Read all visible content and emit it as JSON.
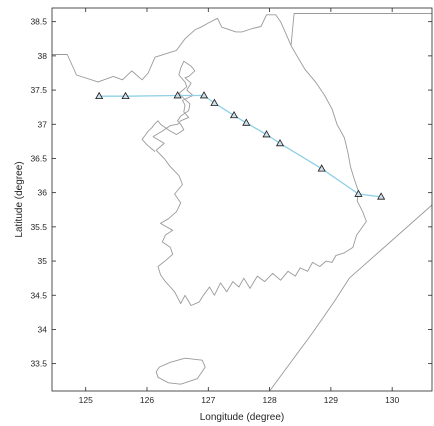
{
  "chart_data": {
    "type": "line",
    "title": "",
    "xlabel": "Longitude (degree)",
    "ylabel": "Latitude (degree)",
    "xlim": [
      124.45,
      130.65
    ],
    "ylim": [
      33.1,
      38.7
    ],
    "xticks": [
      125,
      126,
      127,
      128,
      129,
      130
    ],
    "yticks": [
      33.5,
      34,
      34.5,
      35,
      35.5,
      36,
      36.5,
      37,
      37.5,
      38,
      38.5
    ],
    "grid": false,
    "legend": "none",
    "series": [
      {
        "x": [
          125.22,
          125.65,
          126.5,
          126.93,
          127.1,
          127.42,
          127.62,
          127.95,
          128.17,
          128.85,
          129.45,
          129.82
        ],
        "y": [
          37.41,
          37.41,
          37.42,
          37.42,
          37.31,
          37.13,
          37.02,
          36.85,
          36.72,
          36.35,
          35.98,
          35.94
        ],
        "line_color": "#8fd0e6",
        "marker": "triangle",
        "marker_edge": "#1a1a1a",
        "marker_face": "#cfe0ea"
      }
    ],
    "map_color": "#9a9a9a",
    "coastline_lon": [
      126.13,
      126.48,
      126.62,
      126.78,
      126.88,
      127.0,
      127.15,
      127.22,
      127.45,
      127.55,
      127.72,
      127.86,
      127.95,
      128.1,
      128.18,
      128.28,
      128.35,
      128.48,
      128.58,
      128.75,
      128.9,
      129.02,
      129.1,
      129.22,
      129.28,
      129.32,
      129.38,
      129.45,
      129.43,
      129.52,
      129.58,
      129.42,
      129.36,
      129.22,
      129.08,
      129.02,
      128.92,
      128.82,
      128.7,
      128.62,
      128.5,
      128.42,
      128.3,
      128.18,
      128.05,
      127.92,
      127.8,
      127.68,
      127.58,
      127.5,
      127.4,
      127.3,
      127.2,
      127.1,
      127.02,
      126.92,
      126.85,
      126.72,
      126.62,
      126.55,
      126.45,
      126.38,
      126.3,
      126.22,
      126.18,
      126.32,
      126.42,
      126.38,
      126.25,
      126.3,
      126.42,
      126.22,
      126.35,
      126.48,
      126.55,
      126.45,
      126.58,
      126.52,
      126.38,
      126.28,
      126.15,
      126.28,
      126.1,
      126.25,
      126.38,
      126.5,
      126.55,
      126.68,
      126.6,
      126.62,
      126.58,
      126.75,
      126.65,
      126.72,
      126.62,
      126.68,
      126.78,
      126.72,
      126.6,
      126.55,
      126.52,
      126.62,
      126.65,
      126.52,
      126.6,
      126.7,
      126.68,
      126.55,
      126.5,
      126.55,
      126.6,
      126.48,
      126.38,
      126.3,
      126.22,
      126.18,
      126.12,
      126.08,
      126.02,
      125.98,
      125.92,
      126.0,
      126.13
    ],
    "coastline_lat": [
      37.98,
      38.08,
      38.25,
      38.38,
      38.42,
      38.48,
      38.55,
      38.42,
      38.35,
      38.35,
      38.4,
      38.43,
      38.6,
      38.6,
      38.5,
      38.3,
      38.15,
      37.95,
      37.8,
      37.62,
      37.42,
      37.22,
      37.0,
      36.8,
      36.58,
      36.38,
      36.2,
      36.02,
      35.88,
      35.72,
      35.58,
      35.38,
      35.2,
      35.12,
      35.08,
      34.98,
      35.0,
      34.92,
      34.98,
      34.85,
      34.9,
      34.78,
      34.85,
      34.72,
      34.82,
      34.7,
      34.78,
      34.6,
      34.75,
      34.62,
      34.7,
      34.55,
      34.68,
      34.5,
      34.62,
      34.5,
      34.4,
      34.35,
      34.5,
      34.38,
      34.55,
      34.62,
      34.7,
      34.8,
      34.92,
      35.02,
      35.1,
      35.2,
      35.28,
      35.38,
      35.45,
      35.55,
      35.62,
      35.72,
      35.85,
      35.98,
      36.12,
      36.25,
      36.38,
      36.5,
      36.62,
      36.72,
      36.82,
      36.9,
      36.98,
      37.0,
      37.05,
      37.1,
      37.18,
      37.28,
      37.35,
      37.42,
      37.5,
      37.6,
      37.68,
      37.7,
      37.78,
      37.85,
      37.92,
      37.82,
      37.72,
      37.62,
      37.55,
      37.45,
      37.38,
      37.3,
      37.2,
      37.12,
      37.05,
      37.0,
      36.92,
      36.85,
      36.9,
      36.95,
      37.0,
      37.05,
      37.0,
      36.95,
      36.9,
      36.85,
      36.78,
      36.7,
      36.6,
      37.55,
      37.98
    ],
    "border_lon": [
      124.45,
      124.7,
      124.85,
      125.2,
      125.45,
      125.6,
      125.75,
      125.92,
      126.02,
      126.13
    ],
    "border_lat": [
      38.02,
      38.02,
      37.72,
      37.62,
      37.7,
      37.65,
      37.78,
      37.65,
      37.75,
      37.98
    ],
    "land_edge_lon": [
      128.35,
      128.4,
      130.65
    ],
    "land_edge_lat": [
      38.15,
      38.62,
      38.62
    ],
    "jeju_lon": [
      126.18,
      126.35,
      126.55,
      126.82,
      126.95,
      126.9,
      126.62,
      126.38,
      126.2,
      126.15,
      126.18
    ],
    "jeju_lat": [
      33.3,
      33.22,
      33.2,
      33.28,
      33.45,
      33.55,
      33.58,
      33.52,
      33.45,
      33.38,
      33.3
    ],
    "sea_boundary_lon": [
      128.0,
      128.7,
      129.05,
      129.3,
      130.65
    ],
    "sea_boundary_lat": [
      33.1,
      33.95,
      34.4,
      34.75,
      35.82
    ]
  }
}
